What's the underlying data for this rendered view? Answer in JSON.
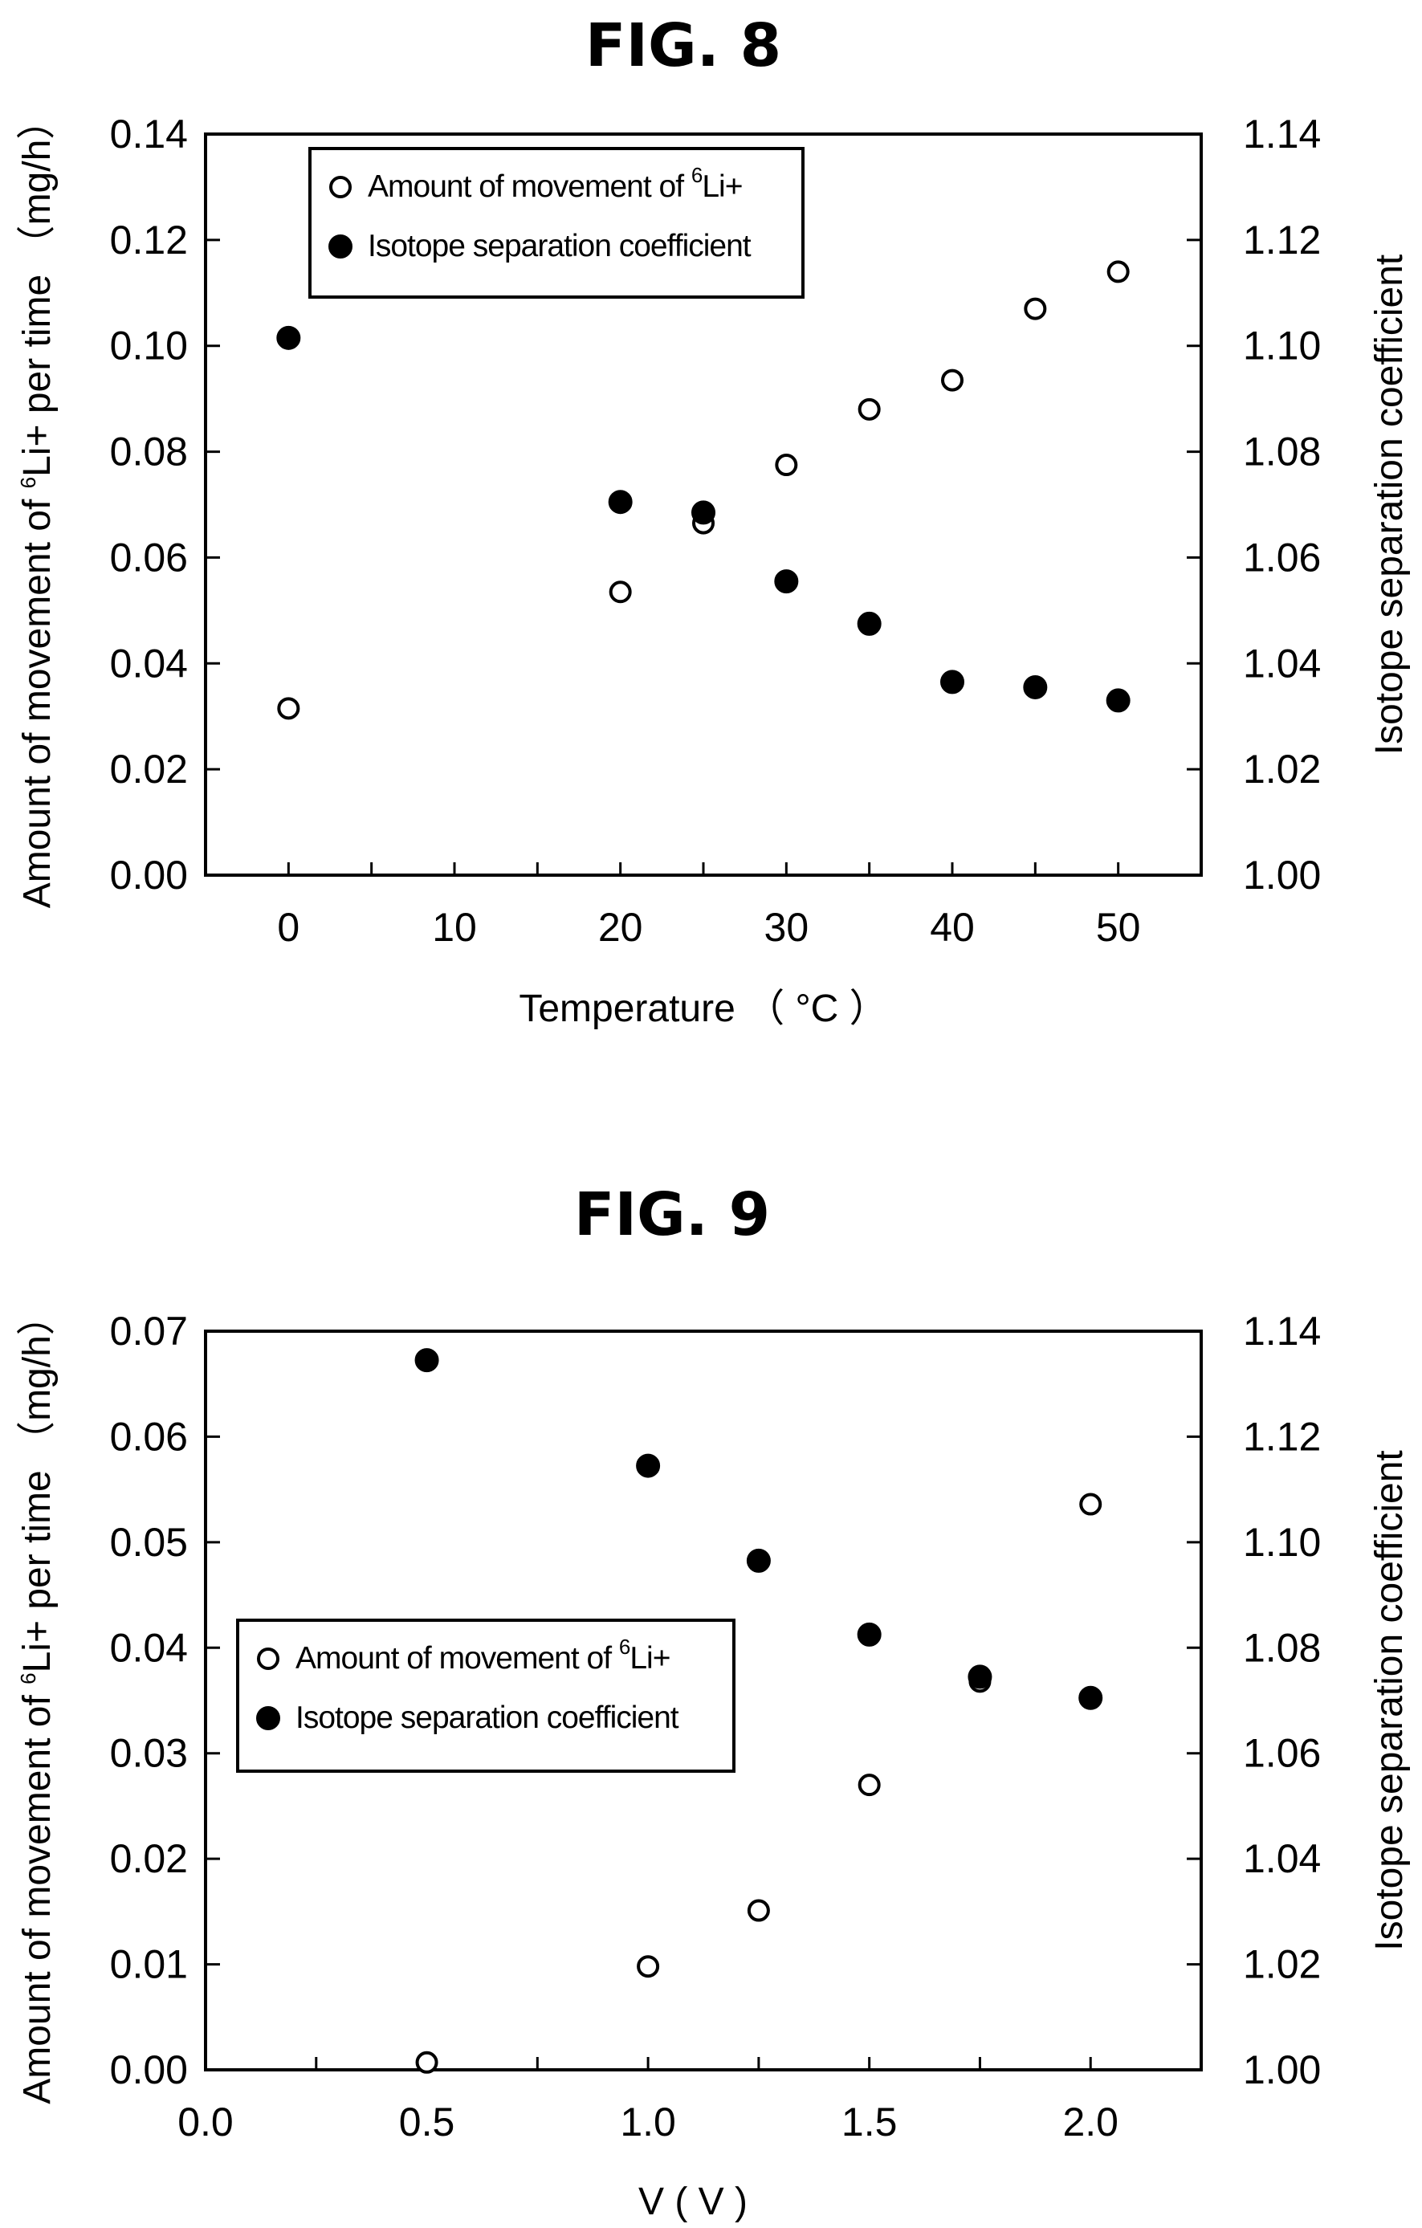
{
  "figures": [
    {
      "id": "fig8",
      "title": "FIG. 8",
      "chart_data": {
        "type": "scatter",
        "title": "FIG. 8",
        "xlabel": "Temperature （ °C ）",
        "ylabel": "Amount of movement of 6Li+ per time （mg/h）",
        "ylabel_parts": {
          "before": "Amount of movement of ",
          "sup": "6",
          "after": "Li+ per time （mg/h）"
        },
        "y2label": "Isotope separation coefficient",
        "xlim": [
          -5,
          55
        ],
        "ylim": [
          0.0,
          0.14
        ],
        "y2lim": [
          1.0,
          1.14
        ],
        "x_ticks": [
          0,
          10,
          20,
          30,
          40,
          50
        ],
        "x_tick_labels": [
          "0",
          "10",
          "20",
          "30",
          "40",
          "50"
        ],
        "y_ticks": [
          0.0,
          0.02,
          0.04,
          0.06,
          0.08,
          0.1,
          0.12,
          0.14
        ],
        "y_tick_labels": [
          "0.00",
          "0.02",
          "0.04",
          "0.06",
          "0.08",
          "0.10",
          "0.12",
          "0.14"
        ],
        "y2_ticks": [
          1.0,
          1.02,
          1.04,
          1.06,
          1.08,
          1.1,
          1.12,
          1.14
        ],
        "y2_tick_labels": [
          "1.00",
          "1.02",
          "1.04",
          "1.06",
          "1.08",
          "1.10",
          "1.12",
          "1.14"
        ],
        "minor_x_ticks": true,
        "grid": false,
        "legend_position": "top-left",
        "series": [
          {
            "name": "Amount of movement of 6Li+",
            "name_parts": {
              "before": "Amount of movement of ",
              "sup": "6",
              "after": "Li+"
            },
            "axis": "left",
            "marker": "open-circle",
            "x": [
              0,
              20,
              25,
              30,
              35,
              40,
              45,
              50
            ],
            "y": [
              0.0315,
              0.0535,
              0.0665,
              0.0775,
              0.088,
              0.0935,
              0.107,
              0.114
            ]
          },
          {
            "name": "Isotope separation coefficient",
            "axis": "right",
            "marker": "filled-circle",
            "x": [
              0,
              20,
              25,
              30,
              35,
              40,
              45,
              50
            ],
            "y": [
              1.1015,
              1.0705,
              1.0685,
              1.0555,
              1.0475,
              1.0365,
              1.0355,
              1.033
            ]
          }
        ]
      }
    },
    {
      "id": "fig9",
      "title": "FIG. 9",
      "chart_data": {
        "type": "scatter",
        "title": "FIG. 9",
        "xlabel": "V ( V )",
        "ylabel": "Amount of movement of 6Li+ per time （mg/h）",
        "ylabel_parts": {
          "before": "Amount of movement of ",
          "sup": "6",
          "after": "Li+ per time （mg/h）"
        },
        "y2label": "Isotope separation coefficient",
        "xlim": [
          0.0,
          2.25
        ],
        "ylim": [
          0.0,
          0.07
        ],
        "y2lim": [
          1.0,
          1.14
        ],
        "x_ticks": [
          0.0,
          0.5,
          1.0,
          1.5,
          2.0
        ],
        "x_tick_labels": [
          "0.0",
          "0.5",
          "1.0",
          "1.5",
          "2.0"
        ],
        "y_ticks": [
          0.0,
          0.01,
          0.02,
          0.03,
          0.04,
          0.05,
          0.06,
          0.07
        ],
        "y_tick_labels": [
          "0.00",
          "0.01",
          "0.02",
          "0.03",
          "0.04",
          "0.05",
          "0.06",
          "0.07"
        ],
        "y2_ticks": [
          1.0,
          1.02,
          1.04,
          1.06,
          1.08,
          1.1,
          1.12,
          1.14
        ],
        "y2_tick_labels": [
          "1.00",
          "1.02",
          "1.04",
          "1.06",
          "1.08",
          "1.10",
          "1.12",
          "1.14"
        ],
        "minor_x_ticks": true,
        "grid": false,
        "legend_position": "middle-left",
        "series": [
          {
            "name": "Amount of movement of 6Li+",
            "name_parts": {
              "before": "Amount of movement of ",
              "sup": "6",
              "after": "Li+"
            },
            "axis": "left",
            "marker": "open-circle",
            "x": [
              0.5,
              1.0,
              1.25,
              1.5,
              1.75,
              2.0
            ],
            "y": [
              0.0007,
              0.0098,
              0.0151,
              0.027,
              0.0368,
              0.0536
            ]
          },
          {
            "name": "Isotope separation coefficient",
            "axis": "right",
            "marker": "filled-circle",
            "x": [
              0.5,
              1.0,
              1.25,
              1.5,
              1.75,
              2.0
            ],
            "y": [
              1.1345,
              1.1145,
              1.0965,
              1.0825,
              1.0745,
              1.0705
            ]
          }
        ]
      }
    }
  ]
}
